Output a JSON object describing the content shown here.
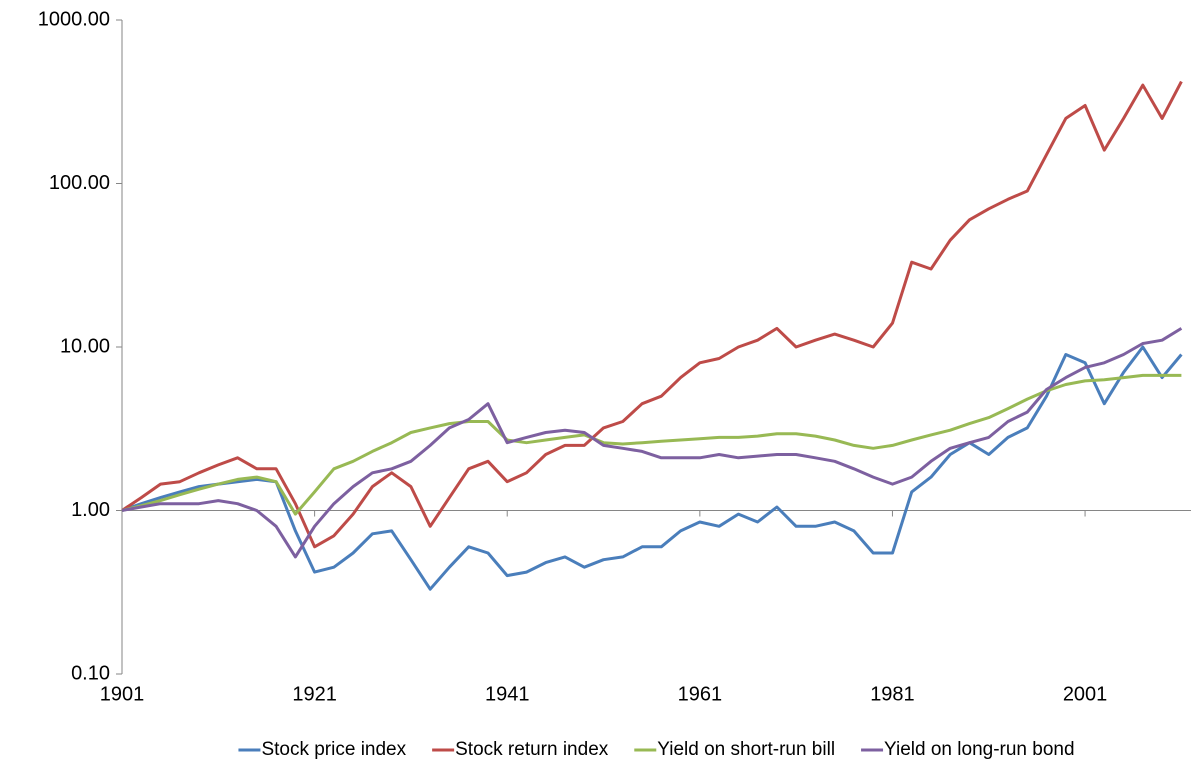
{
  "chart_data": {
    "type": "line",
    "x": [
      1901,
      1903,
      1905,
      1907,
      1909,
      1911,
      1913,
      1915,
      1917,
      1919,
      1921,
      1923,
      1925,
      1927,
      1929,
      1931,
      1933,
      1935,
      1937,
      1939,
      1941,
      1943,
      1945,
      1947,
      1949,
      1951,
      1953,
      1955,
      1957,
      1959,
      1961,
      1963,
      1965,
      1967,
      1969,
      1971,
      1973,
      1975,
      1977,
      1979,
      1981,
      1983,
      1985,
      1987,
      1989,
      1991,
      1993,
      1995,
      1997,
      1999,
      2001,
      2003,
      2005,
      2007,
      2009,
      2011
    ],
    "series": [
      {
        "name": "Stock price index",
        "color": "#4a7ebb",
        "values": [
          1.0,
          1.1,
          1.2,
          1.3,
          1.4,
          1.45,
          1.5,
          1.55,
          1.5,
          0.75,
          0.42,
          0.45,
          0.55,
          0.72,
          0.75,
          0.5,
          0.33,
          0.45,
          0.6,
          0.55,
          0.4,
          0.42,
          0.48,
          0.52,
          0.45,
          0.5,
          0.52,
          0.6,
          0.6,
          0.75,
          0.85,
          0.8,
          0.95,
          0.85,
          1.05,
          0.8,
          0.8,
          0.85,
          0.75,
          0.55,
          0.55,
          1.3,
          1.6,
          2.2,
          2.6,
          2.2,
          2.8,
          3.2,
          5.0,
          9.0,
          8.0,
          4.5,
          7.0,
          10.0,
          6.5,
          9.0
        ]
      },
      {
        "name": "Stock return index",
        "color": "#be4b48",
        "values": [
          1.0,
          1.2,
          1.45,
          1.5,
          1.7,
          1.9,
          2.1,
          1.8,
          1.8,
          1.1,
          0.6,
          0.7,
          0.95,
          1.4,
          1.7,
          1.4,
          0.8,
          1.2,
          1.8,
          2.0,
          1.5,
          1.7,
          2.2,
          2.5,
          2.5,
          3.2,
          3.5,
          4.5,
          5.0,
          6.5,
          8.0,
          8.5,
          10,
          11,
          13,
          10,
          11,
          12,
          11,
          10,
          14,
          33,
          30,
          45,
          60,
          70,
          80,
          90,
          150,
          250,
          300,
          160,
          250,
          400,
          250,
          420
        ]
      },
      {
        "name": "Yield on short-run bill",
        "color": "#98b954",
        "values": [
          1.0,
          1.07,
          1.15,
          1.25,
          1.35,
          1.45,
          1.55,
          1.6,
          1.5,
          0.95,
          1.3,
          1.8,
          2.0,
          2.3,
          2.6,
          3.0,
          3.2,
          3.4,
          3.5,
          3.5,
          2.7,
          2.6,
          2.7,
          2.8,
          2.9,
          2.6,
          2.55,
          2.6,
          2.65,
          2.7,
          2.75,
          2.8,
          2.8,
          2.85,
          2.95,
          2.95,
          2.85,
          2.7,
          2.5,
          2.4,
          2.5,
          2.7,
          2.9,
          3.1,
          3.4,
          3.7,
          4.2,
          4.8,
          5.4,
          5.9,
          6.2,
          6.3,
          6.5,
          6.7,
          6.7,
          6.7
        ]
      },
      {
        "name": "Yield on long-run bond",
        "color": "#7d60a0",
        "values": [
          1.0,
          1.05,
          1.1,
          1.1,
          1.1,
          1.15,
          1.1,
          1.0,
          0.8,
          0.52,
          0.8,
          1.1,
          1.4,
          1.7,
          1.8,
          2.0,
          2.5,
          3.2,
          3.6,
          4.5,
          2.6,
          2.8,
          3.0,
          3.1,
          3.0,
          2.5,
          2.4,
          2.3,
          2.1,
          2.1,
          2.1,
          2.2,
          2.1,
          2.15,
          2.2,
          2.2,
          2.1,
          2.0,
          1.8,
          1.6,
          1.45,
          1.6,
          2.0,
          2.4,
          2.6,
          2.8,
          3.5,
          4.0,
          5.5,
          6.5,
          7.5,
          8.0,
          9.0,
          10.5,
          11,
          13
        ]
      }
    ],
    "xlim": [
      1901,
      2012
    ],
    "xticks": [
      1901,
      1921,
      1941,
      1961,
      1981,
      2001
    ],
    "ylim": [
      0.1,
      1000
    ],
    "ylog": true,
    "yticks": [
      {
        "value": 0.1,
        "label": "0.10"
      },
      {
        "value": 1,
        "label": "1.00"
      },
      {
        "value": 10,
        "label": "10.00"
      },
      {
        "value": 100,
        "label": "100.00"
      },
      {
        "value": 1000,
        "label": "1000.00"
      }
    ],
    "xaxis_crosses_at": 1,
    "legend": "bottom"
  }
}
